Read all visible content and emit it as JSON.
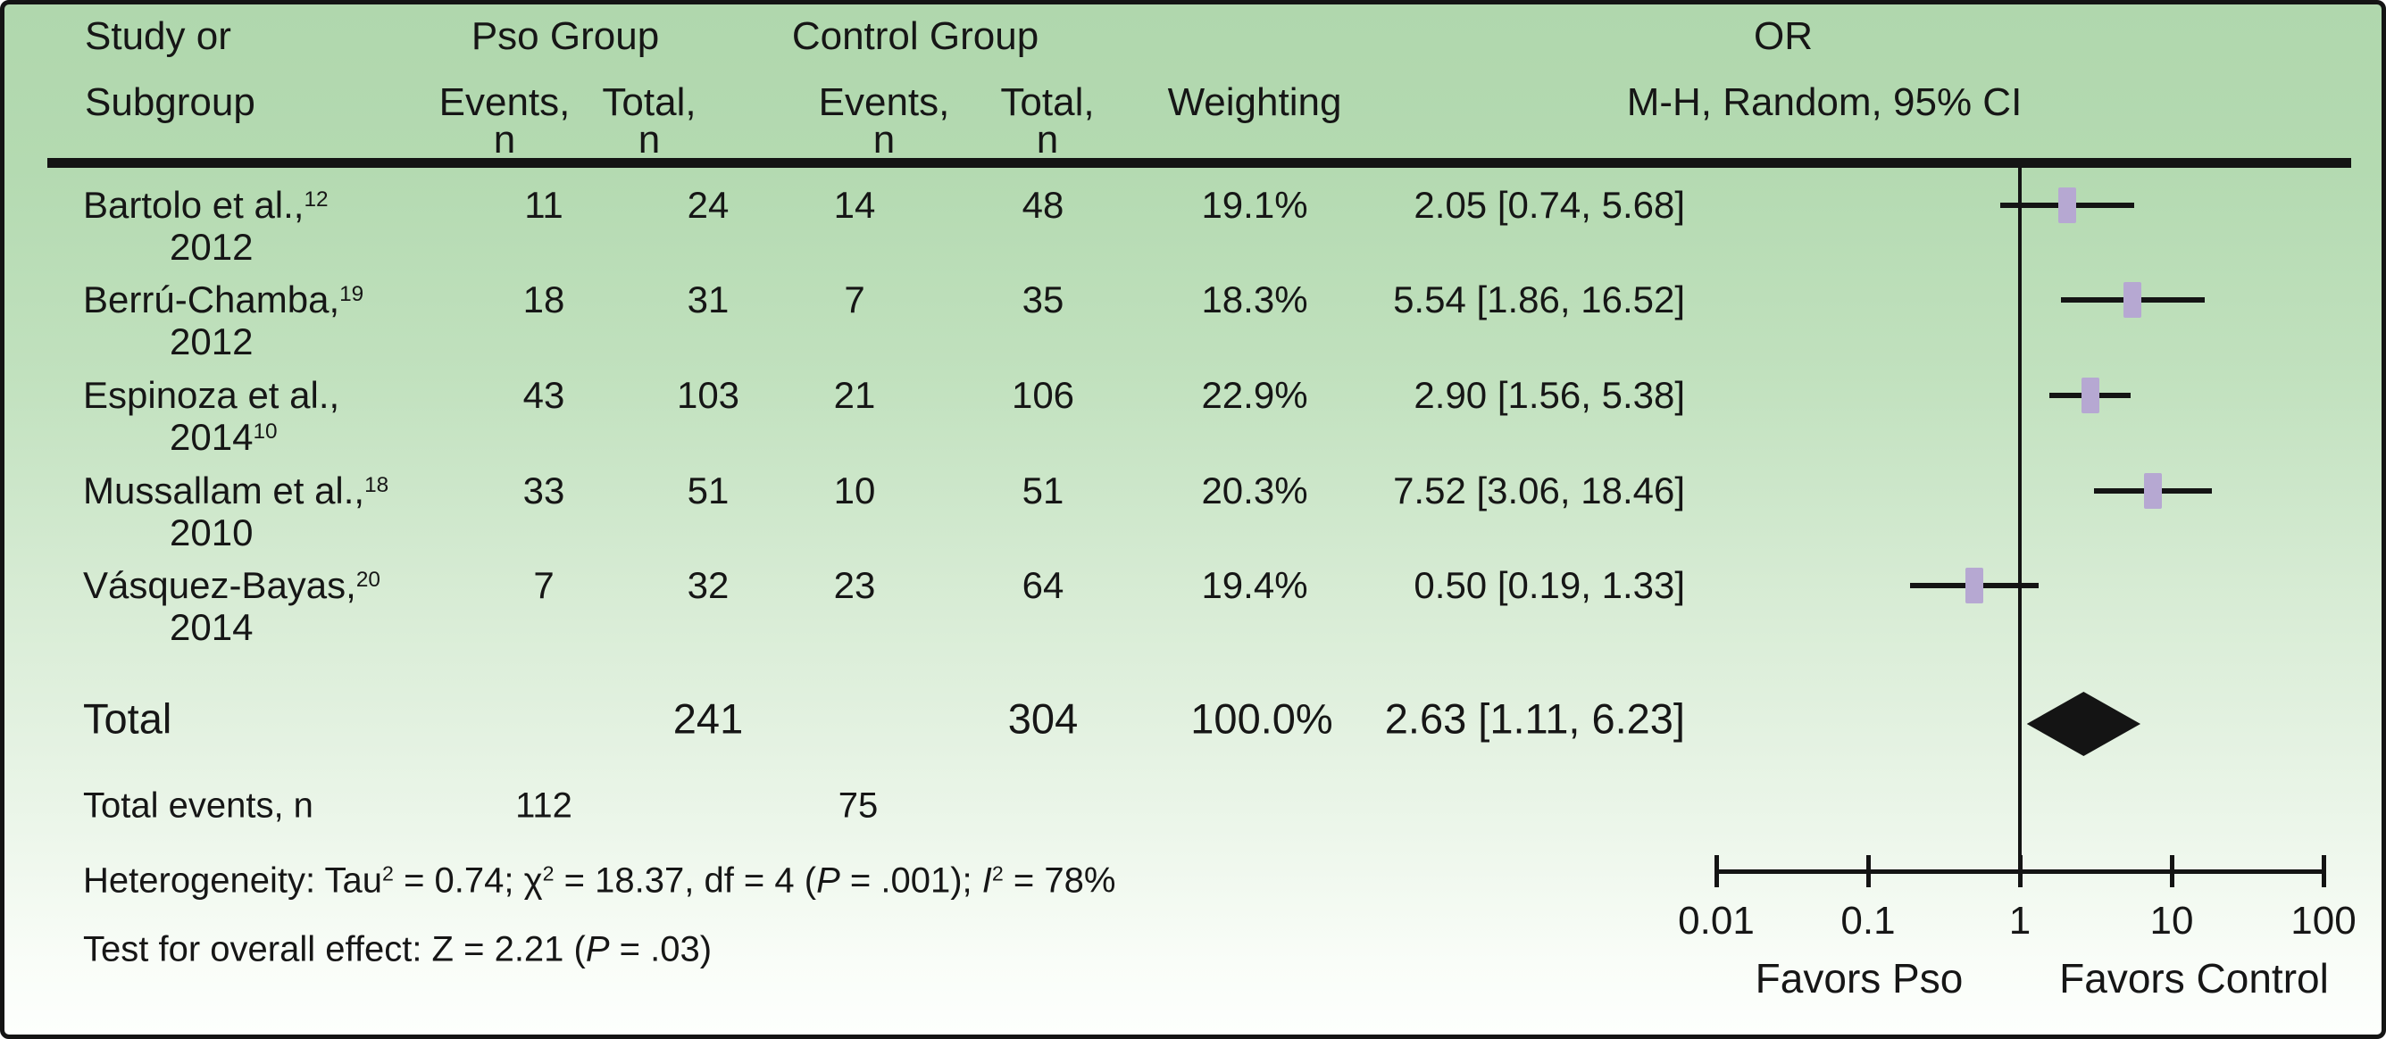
{
  "header": {
    "study_line1": "Study or",
    "study_line2": "Subgroup",
    "group_pso": "Pso Group",
    "group_control": "Control Group",
    "events_label": "Events,",
    "total_label": "Total,",
    "n_label": "n",
    "weighting_label": "Weighting",
    "or_label": "OR",
    "method_label": "M-H, Random, 95% CI"
  },
  "chart_data": {
    "type": "scatter",
    "subtype": "forest-plot",
    "effect_measure": "OR",
    "method": "M-H, Random, 95% CI",
    "x_scale": "log10",
    "x_axis_range": [
      0.01,
      100
    ],
    "x_axis_ticks": [
      "0.01",
      "0.1",
      "1",
      "10",
      "100"
    ],
    "reference_line": 1,
    "favors_left": "Favors Pso",
    "favors_right": "Favors Control",
    "marker_color": "#b6a8d2",
    "diamond_color": "#141414",
    "studies": [
      {
        "line1": "Bartolo et al.,",
        "sup1": "12",
        "line2": "2012",
        "sup2": "",
        "pso_events": "11",
        "pso_total": "24",
        "control_events": "14",
        "control_total": "48",
        "weight": "19.1%",
        "or": 2.05,
        "ci_low": 0.74,
        "ci_high": 5.68,
        "or_ci_text": "2.05 [0.74, 5.68]"
      },
      {
        "line1": "Berrú-Chamba,",
        "sup1": "19",
        "line2": "2012",
        "sup2": "",
        "pso_events": "18",
        "pso_total": "31",
        "control_events": "7",
        "control_total": "35",
        "weight": "18.3%",
        "or": 5.54,
        "ci_low": 1.86,
        "ci_high": 16.52,
        "or_ci_text": "5.54 [1.86, 16.52]"
      },
      {
        "line1": "Espinoza et al.,",
        "sup1": "",
        "line2": "2014",
        "sup2": "10",
        "pso_events": "43",
        "pso_total": "103",
        "control_events": "21",
        "control_total": "106",
        "weight": "22.9%",
        "or": 2.9,
        "ci_low": 1.56,
        "ci_high": 5.38,
        "or_ci_text": "2.90 [1.56, 5.38]"
      },
      {
        "line1": "Mussallam et al.,",
        "sup1": "18",
        "line2": "2010",
        "sup2": "",
        "pso_events": "33",
        "pso_total": "51",
        "control_events": "10",
        "control_total": "51",
        "weight": "20.3%",
        "or": 7.52,
        "ci_low": 3.06,
        "ci_high": 18.46,
        "or_ci_text": "7.52 [3.06, 18.46]"
      },
      {
        "line1": "Vásquez-Bayas,",
        "sup1": "20",
        "line2": "2014",
        "sup2": "",
        "pso_events": "7",
        "pso_total": "32",
        "control_events": "23",
        "control_total": "64",
        "weight": "19.4%",
        "or": 0.5,
        "ci_low": 0.19,
        "ci_high": 1.33,
        "or_ci_text": "0.50 [0.19, 1.33]"
      }
    ],
    "total": {
      "label": "Total",
      "pso_total": "241",
      "control_total": "304",
      "weight": "100.0%",
      "or": 2.63,
      "ci_low": 1.11,
      "ci_high": 6.23,
      "or_ci_text": "2.63 [1.11, 6.23]"
    },
    "total_events": {
      "label": "Total events, n",
      "pso_events": "112",
      "control_events": "75"
    },
    "heterogeneity_segments": [
      {
        "t": "Heterogeneity: Tau"
      },
      {
        "t": "2",
        "sup": true
      },
      {
        "t": " = 0.74; "
      },
      {
        "t": "χ"
      },
      {
        "t": "2",
        "sup": true
      },
      {
        "t": " = 18.37, df = 4 ("
      },
      {
        "t": "P",
        "i": true
      },
      {
        "t": " = .001); "
      },
      {
        "t": "I",
        "i": true
      },
      {
        "t": "2",
        "sup": true
      },
      {
        "t": " = 78%"
      }
    ],
    "overall_effect_segments": [
      {
        "t": "Test for overall effect: Z = 2.21 ("
      },
      {
        "t": "P",
        "i": true
      },
      {
        "t": " = .03)"
      }
    ]
  }
}
